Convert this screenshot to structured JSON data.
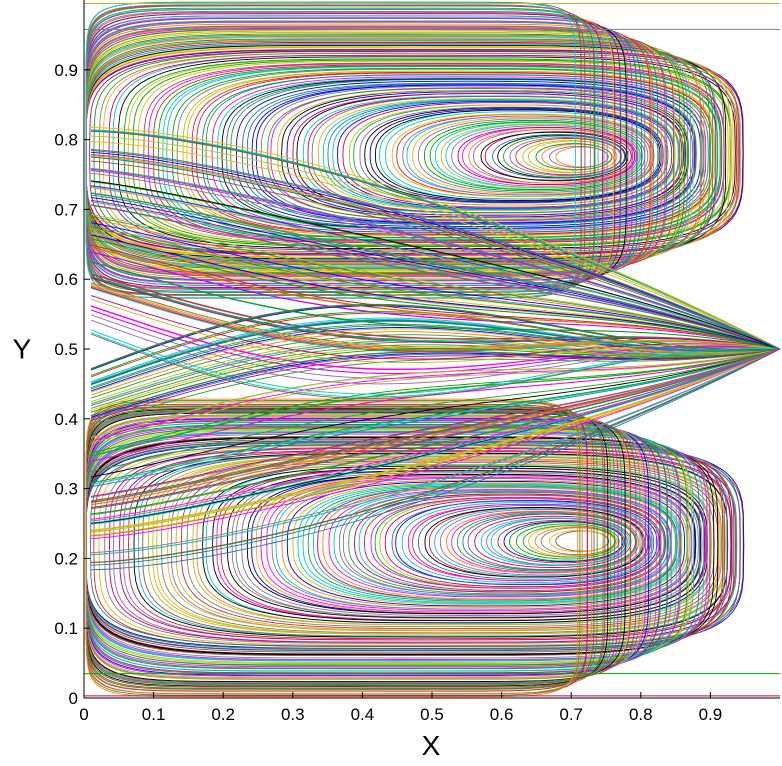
{
  "chart_data": {
    "type": "line",
    "subtype": "streamlines",
    "title": "",
    "xlabel": "X",
    "ylabel": "Y",
    "xlim": [
      0,
      1
    ],
    "ylim": [
      0,
      1
    ],
    "grid": false,
    "legend": "none",
    "x_ticks": [
      "0",
      "0.1",
      "0.2",
      "0.3",
      "0.4",
      "0.5",
      "0.6",
      "0.7",
      "0.8",
      "0.9"
    ],
    "y_ticks": [
      "0",
      "0.1",
      "0.2",
      "0.3",
      "0.4",
      "0.5",
      "0.6",
      "0.7",
      "0.8",
      "0.9"
    ],
    "x_tick_values": [
      0,
      0.1,
      0.2,
      0.3,
      0.4,
      0.5,
      0.6,
      0.7,
      0.8,
      0.9
    ],
    "y_tick_values": [
      0,
      0.1,
      0.2,
      0.3,
      0.4,
      0.5,
      0.6,
      0.7,
      0.8,
      0.9
    ],
    "vortex_centers": [
      {
        "x": 0.72,
        "y": 0.775
      },
      {
        "x": 0.72,
        "y": 0.225
      }
    ],
    "stagnation_point": {
      "x": 1.0,
      "y": 0.5
    },
    "line_colors": [
      "#1f77b4",
      "#d62728",
      "#2ca02c",
      "#9467bd",
      "#ff00ff",
      "#00cccc",
      "#e6b800",
      "#000000",
      "#ff7f0e",
      "#8c564b",
      "#17becf",
      "#7f7f7f",
      "#bcbd22",
      "#0000ff",
      "#00aa00",
      "#cc0066"
    ]
  }
}
